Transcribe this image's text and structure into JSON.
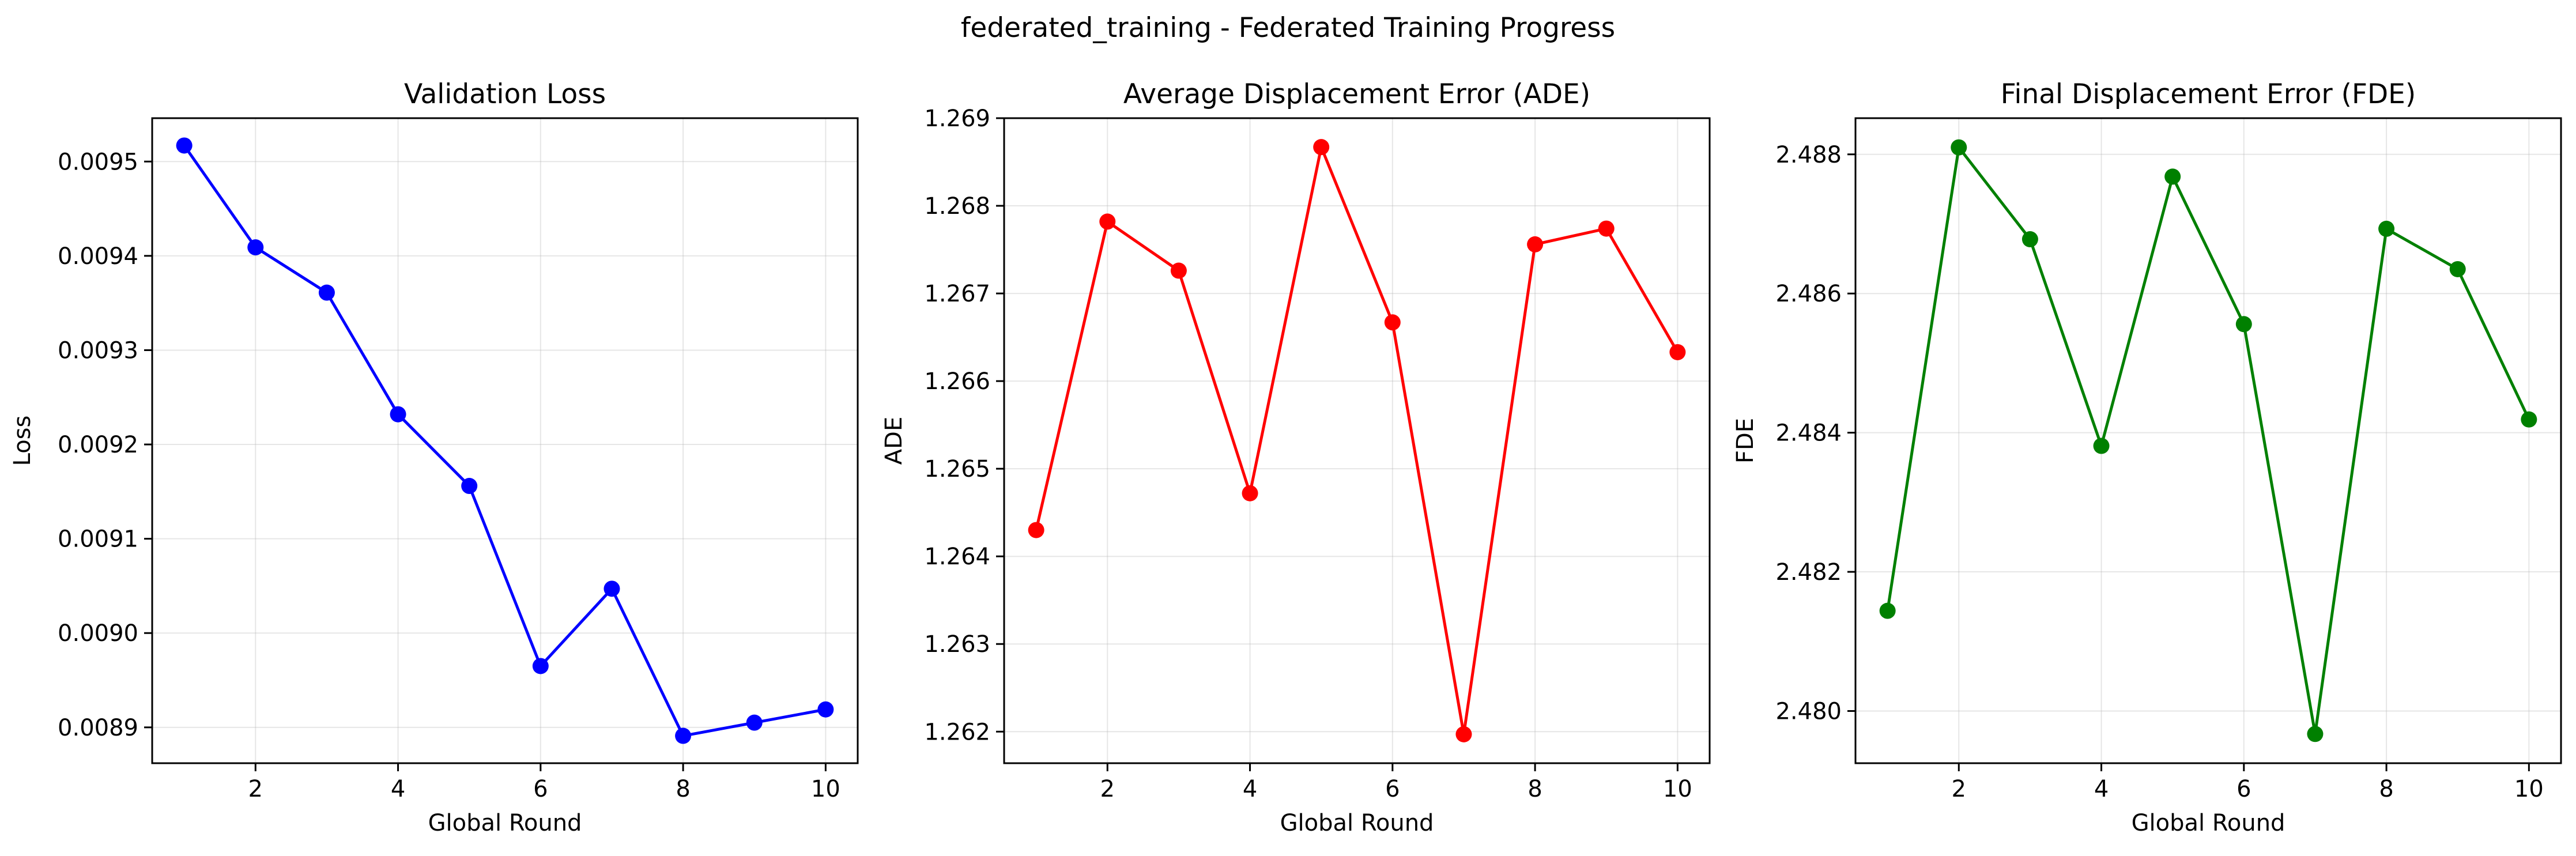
{
  "suptitle": "federated_training - Federated Training Progress",
  "chart_data": [
    {
      "type": "line",
      "title": "Validation Loss",
      "xlabel": "Global Round",
      "ylabel": "Loss",
      "color": "#0000ff",
      "x": [
        1,
        2,
        3,
        4,
        5,
        6,
        7,
        8,
        9,
        10
      ],
      "values": [
        0.009517,
        0.009409,
        0.009361,
        0.009232,
        0.009156,
        0.008965,
        0.009047,
        0.008891,
        0.008905,
        0.008919
      ],
      "xlim": [
        0.55,
        10.45
      ],
      "ylim": [
        0.008862,
        0.009546
      ],
      "xticks": [
        2,
        4,
        6,
        8,
        10
      ],
      "xtick_labels": [
        "2",
        "4",
        "6",
        "8",
        "10"
      ],
      "yticks": [
        0.0089,
        0.009,
        0.0091,
        0.0092,
        0.0093,
        0.0094,
        0.0095
      ],
      "ytick_labels": [
        "0.0089",
        "0.0090",
        "0.0091",
        "0.0092",
        "0.0093",
        "0.0094",
        "0.0095"
      ],
      "grid": true
    },
    {
      "type": "line",
      "title": "Average Displacement Error (ADE)",
      "xlabel": "Global Round",
      "ylabel": "ADE",
      "color": "#ff0000",
      "x": [
        1,
        2,
        3,
        4,
        5,
        6,
        7,
        8,
        9,
        10
      ],
      "values": [
        1.2643,
        1.26782,
        1.26726,
        1.26472,
        1.26867,
        1.26667,
        1.26197,
        1.26756,
        1.26774,
        1.26633
      ],
      "xlim": [
        0.55,
        10.45
      ],
      "ylim": [
        1.26164,
        1.269
      ],
      "xticks": [
        2,
        4,
        6,
        8,
        10
      ],
      "xtick_labels": [
        "2",
        "4",
        "6",
        "8",
        "10"
      ],
      "yticks": [
        1.262,
        1.263,
        1.264,
        1.265,
        1.266,
        1.267,
        1.268,
        1.269
      ],
      "ytick_labels": [
        "1.262",
        "1.263",
        "1.264",
        "1.265",
        "1.266",
        "1.267",
        "1.268",
        "1.269"
      ],
      "grid": true
    },
    {
      "type": "line",
      "title": "Final Displacement Error (FDE)",
      "xlabel": "Global Round",
      "ylabel": "FDE",
      "color": "#008000",
      "x": [
        1,
        2,
        3,
        4,
        5,
        6,
        7,
        8,
        9,
        10
      ],
      "values": [
        2.48144,
        2.4881,
        2.48678,
        2.48381,
        2.48768,
        2.48556,
        2.47967,
        2.48693,
        2.48635,
        2.48419
      ],
      "xlim": [
        0.55,
        10.45
      ],
      "ylim": [
        2.47925,
        2.48852
      ],
      "xticks": [
        2,
        4,
        6,
        8,
        10
      ],
      "xtick_labels": [
        "2",
        "4",
        "6",
        "8",
        "10"
      ],
      "yticks": [
        2.48,
        2.482,
        2.484,
        2.486,
        2.488
      ],
      "ytick_labels": [
        "2.480",
        "2.482",
        "2.484",
        "2.486",
        "2.488"
      ],
      "grid": true
    }
  ]
}
